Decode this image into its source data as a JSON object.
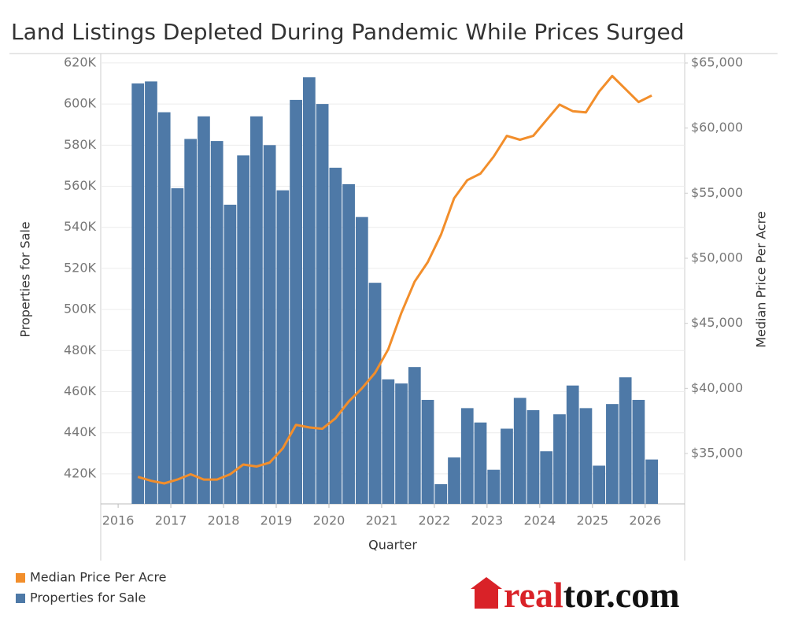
{
  "chart_data": {
    "type": "combo",
    "title": "Land Listings Depleted During Pandemic While Prices Surged",
    "x_label": "Quarter",
    "y_label": "Properties for Sale",
    "y2_label": "Median Price Per Acre",
    "x": [
      2016.375,
      2016.625,
      2016.875,
      2017.125,
      2017.375,
      2017.625,
      2017.875,
      2018.125,
      2018.375,
      2018.625,
      2018.875,
      2019.125,
      2019.375,
      2019.625,
      2019.875,
      2020.125,
      2020.375,
      2020.625,
      2020.875,
      2021.125,
      2021.375,
      2021.625,
      2021.875,
      2022.125,
      2022.375,
      2022.625,
      2022.875,
      2023.125,
      2023.375,
      2023.625,
      2023.875,
      2024.125,
      2024.375,
      2024.625,
      2024.875,
      2025.125,
      2025.375,
      2025.625,
      2025.875,
      2026.125
    ],
    "xlim": [
      2015.67,
      2026.75
    ],
    "xticks": [
      2016,
      2017,
      2018,
      2019,
      2020,
      2021,
      2022,
      2023,
      2024,
      2025,
      2026
    ],
    "ylim": [
      405400,
      623800
    ],
    "yticks": [
      {
        "value": 420000,
        "label": "420K"
      },
      {
        "value": 440000,
        "label": "440K"
      },
      {
        "value": 460000,
        "label": "460K"
      },
      {
        "value": 480000,
        "label": "480K"
      },
      {
        "value": 500000,
        "label": "500K"
      },
      {
        "value": 520000,
        "label": "520K"
      },
      {
        "value": 540000,
        "label": "540K"
      },
      {
        "value": 560000,
        "label": "560K"
      },
      {
        "value": 580000,
        "label": "580K"
      },
      {
        "value": 600000,
        "label": "600K"
      },
      {
        "value": 620000,
        "label": "620K"
      }
    ],
    "y2lim": [
      31128,
      65605
    ],
    "y2ticks": [
      {
        "value": 35000,
        "label": "$35,000"
      },
      {
        "value": 40000,
        "label": "$40,000"
      },
      {
        "value": 45000,
        "label": "$45,000"
      },
      {
        "value": 50000,
        "label": "$50,000"
      },
      {
        "value": 55000,
        "label": "$55,000"
      },
      {
        "value": 60000,
        "label": "$60,000"
      },
      {
        "value": 65000,
        "label": "$65,000"
      }
    ],
    "grid": true,
    "legend": "bottom-left",
    "series": [
      {
        "name": "Median Price Per Acre",
        "type": "line",
        "axis": "y2",
        "color": "#f28e2b",
        "values": [
          33200,
          32900,
          32700,
          33000,
          33400,
          33000,
          33000,
          33400,
          34150,
          34000,
          34300,
          35400,
          37200,
          37000,
          36900,
          37700,
          39000,
          40000,
          41200,
          43000,
          45800,
          48200,
          49700,
          51800,
          54600,
          56000,
          56500,
          57800,
          59400,
          59100,
          59400,
          60600,
          61800,
          61300,
          61200,
          62800,
          64000,
          63000,
          62000,
          62500
        ]
      },
      {
        "name": "Properties for Sale",
        "type": "bar",
        "color": "#4e79a7",
        "values": [
          610000,
          611000,
          596000,
          559000,
          583000,
          594000,
          582000,
          551000,
          575000,
          594000,
          580000,
          558000,
          602000,
          613000,
          600000,
          569000,
          561000,
          545000,
          513000,
          466000,
          464000,
          472000,
          456000,
          415000,
          428000,
          452000,
          445000,
          422000,
          442000,
          457000,
          451000,
          431000,
          449000,
          463000,
          452000,
          424000,
          454000,
          467000,
          456000,
          427000
        ]
      }
    ]
  },
  "logo": [
    "real",
    "tor.com"
  ]
}
